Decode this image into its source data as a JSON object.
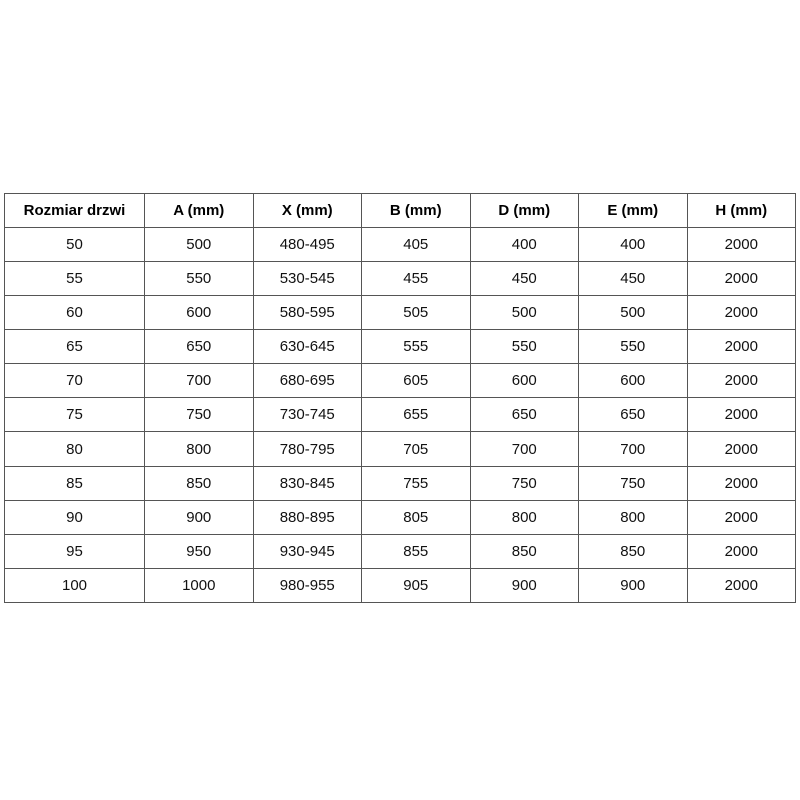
{
  "table": {
    "name": "door-sizes-table",
    "border_color": "#555555",
    "headers": [
      "Rozmiar drzwi",
      "A (mm)",
      "X (mm)",
      "B (mm)",
      "D (mm)",
      "E (mm)",
      "H (mm)"
    ],
    "rows": [
      [
        "50",
        "500",
        "480-495",
        "405",
        "400",
        "400",
        "2000"
      ],
      [
        "55",
        "550",
        "530-545",
        "455",
        "450",
        "450",
        "2000"
      ],
      [
        "60",
        "600",
        "580-595",
        "505",
        "500",
        "500",
        "2000"
      ],
      [
        "65",
        "650",
        "630-645",
        "555",
        "550",
        "550",
        "2000"
      ],
      [
        "70",
        "700",
        "680-695",
        "605",
        "600",
        "600",
        "2000"
      ],
      [
        "75",
        "750",
        "730-745",
        "655",
        "650",
        "650",
        "2000"
      ],
      [
        "80",
        "800",
        "780-795",
        "705",
        "700",
        "700",
        "2000"
      ],
      [
        "85",
        "850",
        "830-845",
        "755",
        "750",
        "750",
        "2000"
      ],
      [
        "90",
        "900",
        "880-895",
        "805",
        "800",
        "800",
        "2000"
      ],
      [
        "95",
        "950",
        "930-945",
        "855",
        "850",
        "850",
        "2000"
      ],
      [
        "100",
        "1000",
        "980-955",
        "905",
        "900",
        "900",
        "2000"
      ]
    ]
  }
}
